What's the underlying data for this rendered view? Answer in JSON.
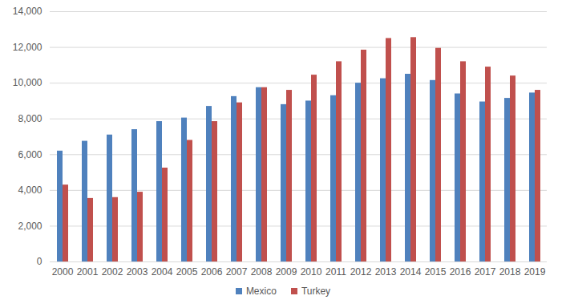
{
  "chart_data": {
    "type": "bar",
    "categories": [
      "2000",
      "2001",
      "2002",
      "2003",
      "2004",
      "2005",
      "2006",
      "2007",
      "2008",
      "2009",
      "2010",
      "2011",
      "2012",
      "2013",
      "2014",
      "2015",
      "2016",
      "2017",
      "2018",
      "2019"
    ],
    "series": [
      {
        "name": "Mexico",
        "color": "#4f81bd",
        "values": [
          6200,
          6750,
          7100,
          7400,
          7850,
          8050,
          8700,
          9250,
          9750,
          8800,
          9000,
          9300,
          10000,
          10250,
          10500,
          10150,
          9400,
          8950,
          9150,
          9450
        ]
      },
      {
        "name": "Turkey",
        "color": "#c0504d",
        "values": [
          4300,
          3550,
          3600,
          3900,
          5250,
          6800,
          7850,
          8900,
          9750,
          9600,
          10450,
          11200,
          11850,
          12500,
          12550,
          11950,
          11200,
          10900,
          10400,
          9600
        ]
      }
    ],
    "ylim": [
      0,
      14000
    ],
    "yticks": [
      0,
      {
        "value": 2000,
        "label": "2,000"
      },
      {
        "value": 4000,
        "label": "4,000"
      },
      {
        "value": 6000,
        "label": "6,000"
      },
      {
        "value": 8000,
        "label": "8,000"
      },
      {
        "value": 10000,
        "label": "10,000"
      },
      {
        "value": 12000,
        "label": "12,000"
      },
      {
        "value": 14000,
        "label": "14,000"
      }
    ],
    "grid": true,
    "legend": "bottom"
  }
}
